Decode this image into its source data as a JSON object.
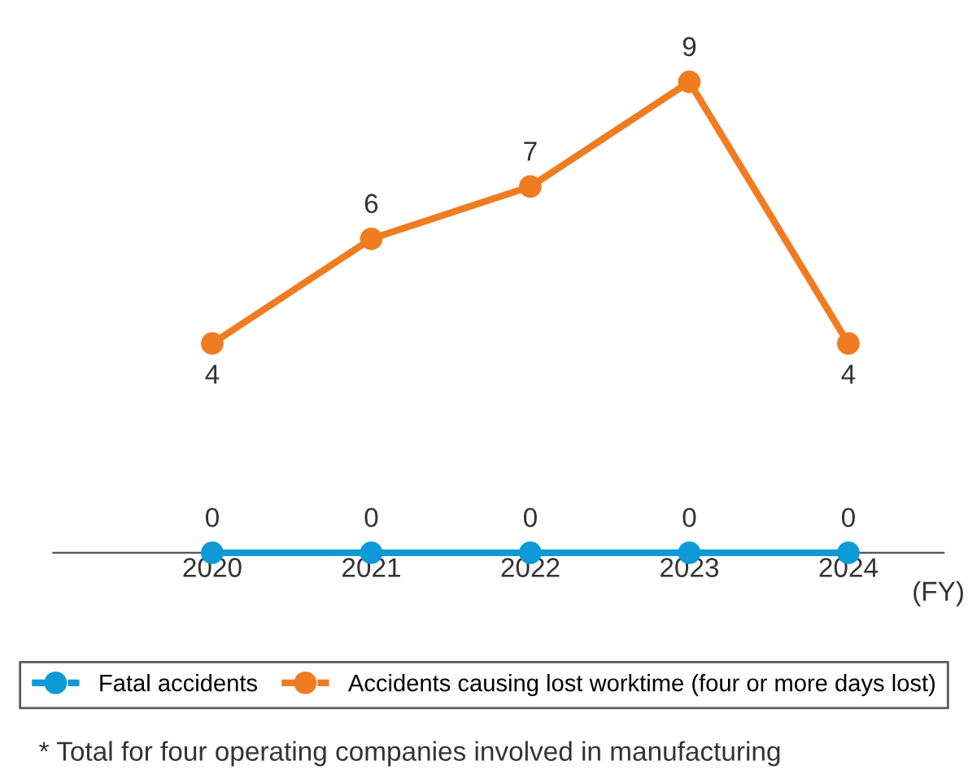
{
  "chart_data": {
    "type": "line",
    "categories": [
      "2020",
      "2021",
      "2022",
      "2023",
      "2024"
    ],
    "xlabel": "(FY)",
    "series": [
      {
        "name": "Fatal accidents",
        "color": "#0e9ad7",
        "values": [
          0,
          0,
          0,
          0,
          0
        ]
      },
      {
        "name": "Accidents causing lost worktime (four or more days lost)",
        "color": "#f07c21",
        "values": [
          4,
          6,
          7,
          9,
          4
        ]
      }
    ],
    "data_labels": true,
    "marker": "circle",
    "line_style": "solid",
    "legend": "bottom",
    "grid": false,
    "tick_labels": "x",
    "annotations": [
      "* Total for four operating companies involved in manufacturing"
    ]
  }
}
